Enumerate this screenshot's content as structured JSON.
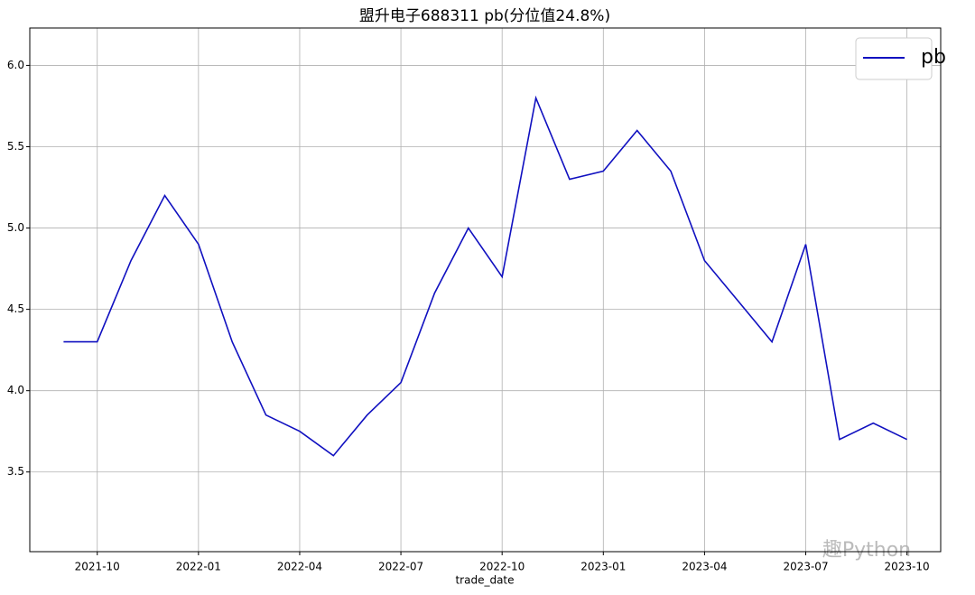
{
  "chart_data": {
    "type": "line",
    "title": "盟升电子688311 pb(分位值24.8%)",
    "xlabel": "trade_date",
    "watermark": "趣Python",
    "x": [
      "2021-09",
      "2021-10",
      "2021-11",
      "2021-12",
      "2022-01",
      "2022-02",
      "2022-03",
      "2022-04",
      "2022-05",
      "2022-06",
      "2022-07",
      "2022-08",
      "2022-09",
      "2022-10",
      "2022-11",
      "2022-12",
      "2023-01",
      "2023-02",
      "2023-03",
      "2023-04",
      "2023-05",
      "2023-06",
      "2023-07",
      "2023-08",
      "2023-09",
      "2023-10"
    ],
    "series": [
      {
        "name": "pb",
        "color": "#1010c0",
        "values": [
          4.3,
          4.3,
          4.8,
          5.2,
          4.9,
          4.3,
          3.85,
          3.75,
          3.6,
          3.85,
          4.05,
          4.6,
          5.0,
          4.7,
          5.8,
          5.3,
          5.35,
          5.6,
          5.35,
          4.8,
          4.55,
          4.3,
          4.9,
          3.7,
          3.8,
          3.7
        ]
      }
    ],
    "xlim": [
      "2021-08",
      "2023-11"
    ],
    "xticks": [
      "2021-10",
      "2022-01",
      "2022-04",
      "2022-07",
      "2022-10",
      "2023-01",
      "2023-04",
      "2023-07",
      "2023-10"
    ],
    "ylim": [
      3.01,
      6.23
    ],
    "yticks": [
      {
        "value": 3.5,
        "label": "3.5"
      },
      {
        "value": 4,
        "label": "4.0"
      },
      {
        "value": 4.5,
        "label": "4.5"
      },
      {
        "value": 5,
        "label": "5.0"
      },
      {
        "value": 5.5,
        "label": "5.5"
      },
      {
        "value": 6,
        "label": "6.0"
      }
    ],
    "grid": true,
    "legend": "upper right"
  }
}
